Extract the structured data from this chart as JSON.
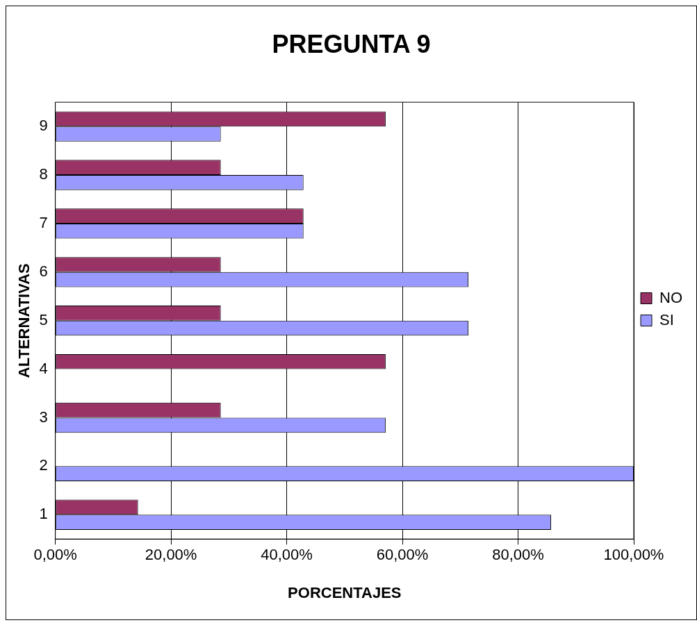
{
  "chart_data": {
    "type": "bar",
    "orientation": "horizontal",
    "title": "PREGUNTA 9",
    "xlabel": "PORCENTAJES",
    "ylabel": "ALTERNATIVAS",
    "categories": [
      "9",
      "8",
      "7",
      "6",
      "5",
      "4",
      "3",
      "2",
      "1"
    ],
    "series": [
      {
        "name": "NO",
        "color": "#993366",
        "values": [
          57.1,
          28.6,
          42.9,
          28.6,
          28.6,
          57.1,
          28.6,
          0,
          14.3
        ]
      },
      {
        "name": "SI",
        "color": "#9999ff",
        "values": [
          28.6,
          42.9,
          42.9,
          71.4,
          71.4,
          0,
          57.1,
          100,
          85.7
        ]
      }
    ],
    "xlim": [
      0,
      100
    ],
    "xticks": [
      {
        "value": 0,
        "label": "0,00%"
      },
      {
        "value": 20,
        "label": "20,00%"
      },
      {
        "value": 40,
        "label": "40,00%"
      },
      {
        "value": 60,
        "label": "60,00%"
      },
      {
        "value": 80,
        "label": "80,00%"
      },
      {
        "value": 100,
        "label": "100,00%"
      }
    ],
    "grid": "x",
    "legend": "right"
  }
}
